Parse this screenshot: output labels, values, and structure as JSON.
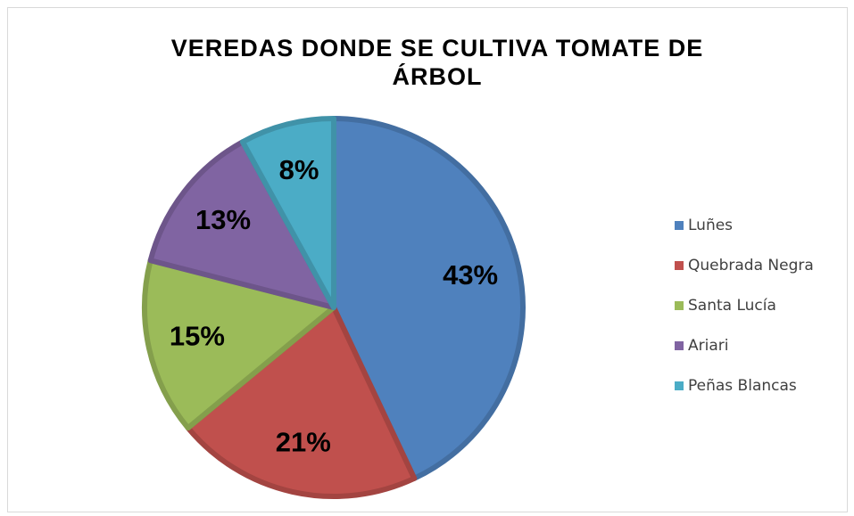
{
  "chart_data": {
    "type": "pie",
    "title": "VEREDAS DONDE SE CULTIVA TOMATE DE ÁRBOL",
    "categories": [
      "Luñes",
      "Quebrada Negra",
      "Santa Lucía",
      "Ariari",
      "Peñas Blancas"
    ],
    "values": [
      43,
      21,
      15,
      13,
      8
    ],
    "value_labels": [
      "43%",
      "21%",
      "15%",
      "13%",
      "8%"
    ],
    "colors": [
      "#4f81bd",
      "#c0504d",
      "#9bbb59",
      "#8064a2",
      "#4bacc6"
    ],
    "legend": "right"
  }
}
